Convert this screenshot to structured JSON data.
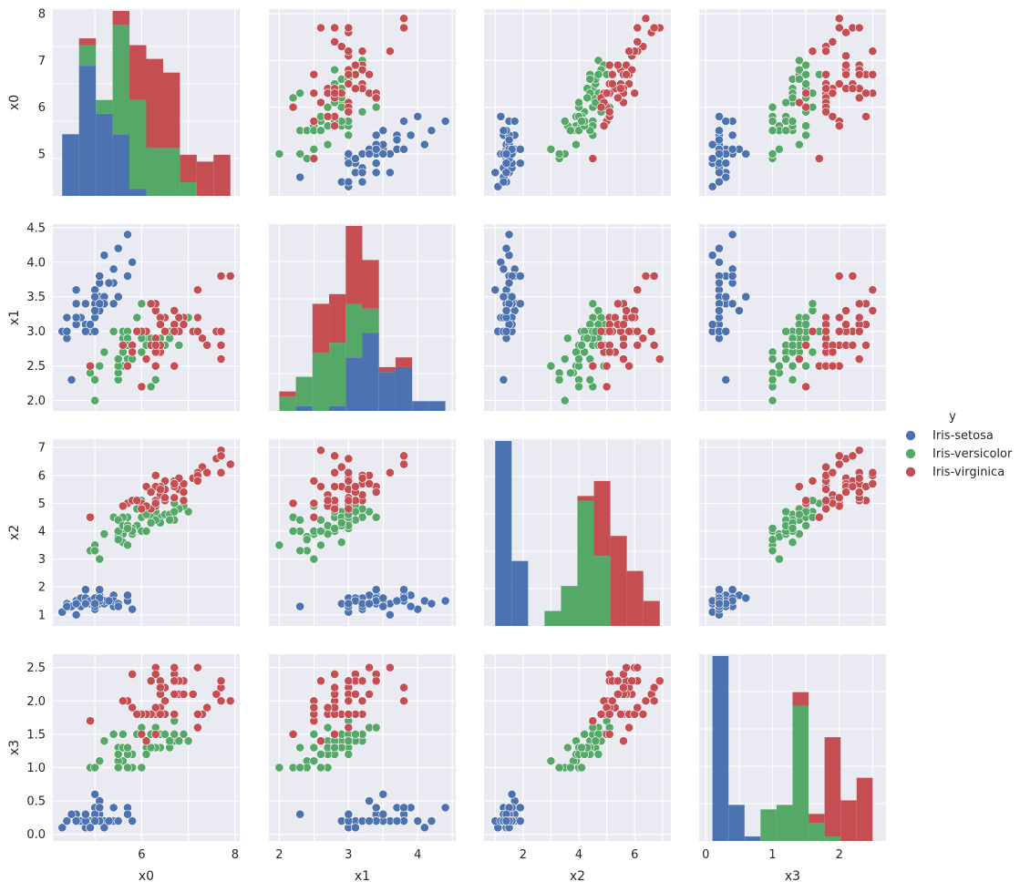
{
  "chart_data": {
    "type": "scatter",
    "subtype": "pairplot",
    "variables": [
      "x0",
      "x1",
      "x2",
      "x3"
    ],
    "hue_title": "y",
    "diag_kind": "hist",
    "classes": [
      {
        "name": "Iris-setosa",
        "color": "#4C72B0"
      },
      {
        "name": "Iris-versicolor",
        "color": "#55A868"
      },
      {
        "name": "Iris-virginica",
        "color": "#C44E52"
      }
    ],
    "axes": {
      "x0": {
        "range": [
          4.1,
          8.1
        ],
        "ticks": [
          5,
          6,
          7,
          8
        ],
        "bottom_ticks": [
          6,
          8
        ]
      },
      "x1": {
        "range": [
          1.85,
          4.55
        ],
        "ticks": [
          2.0,
          2.5,
          3.0,
          3.5,
          4.0,
          4.5
        ],
        "bottom_ticks": [
          2,
          3,
          4
        ]
      },
      "x2": {
        "range": [
          0.6,
          7.3
        ],
        "ticks": [
          1,
          2,
          3,
          4,
          5,
          6,
          7
        ],
        "bottom_ticks": [
          2,
          4,
          6
        ]
      },
      "x3": {
        "range": [
          -0.1,
          2.7
        ],
        "ticks": [
          0.0,
          0.5,
          1.0,
          1.5,
          2.0,
          2.5
        ],
        "bottom_ticks": [
          0,
          1,
          2
        ]
      }
    },
    "tick_text": {
      "x0": [
        "5",
        "6",
        "7",
        "8"
      ],
      "x1": [
        "2.0",
        "2.5",
        "3.0",
        "3.5",
        "4.0",
        "4.5"
      ],
      "x2": [
        "1",
        "2",
        "3",
        "4",
        "5",
        "6",
        "7"
      ],
      "x3": [
        "0.0",
        "0.5",
        "1.0",
        "1.5",
        "2.0",
        "2.5"
      ],
      "x0_bottom": [
        "6",
        "8"
      ],
      "x1_bottom": [
        "2",
        "3",
        "4"
      ],
      "x2_bottom": [
        "2",
        "4",
        "6"
      ],
      "x3_bottom": [
        "0",
        "1",
        "2"
      ]
    },
    "data": {
      "Iris-setosa": [
        [
          5.1,
          3.5,
          1.4,
          0.2
        ],
        [
          4.9,
          3.0,
          1.4,
          0.2
        ],
        [
          4.7,
          3.2,
          1.3,
          0.2
        ],
        [
          4.6,
          3.1,
          1.5,
          0.2
        ],
        [
          5.0,
          3.6,
          1.4,
          0.2
        ],
        [
          5.4,
          3.9,
          1.7,
          0.4
        ],
        [
          4.6,
          3.4,
          1.4,
          0.3
        ],
        [
          5.0,
          3.4,
          1.5,
          0.2
        ],
        [
          4.4,
          2.9,
          1.4,
          0.2
        ],
        [
          4.9,
          3.1,
          1.5,
          0.1
        ],
        [
          5.4,
          3.7,
          1.5,
          0.2
        ],
        [
          4.8,
          3.4,
          1.6,
          0.2
        ],
        [
          4.8,
          3.0,
          1.4,
          0.1
        ],
        [
          4.3,
          3.0,
          1.1,
          0.1
        ],
        [
          5.8,
          4.0,
          1.2,
          0.2
        ],
        [
          5.7,
          4.4,
          1.5,
          0.4
        ],
        [
          5.4,
          3.9,
          1.3,
          0.4
        ],
        [
          5.1,
          3.5,
          1.4,
          0.3
        ],
        [
          5.7,
          3.8,
          1.7,
          0.3
        ],
        [
          5.1,
          3.8,
          1.5,
          0.3
        ],
        [
          5.4,
          3.4,
          1.7,
          0.2
        ],
        [
          5.1,
          3.7,
          1.5,
          0.4
        ],
        [
          4.6,
          3.6,
          1.0,
          0.2
        ],
        [
          5.1,
          3.3,
          1.7,
          0.5
        ],
        [
          4.8,
          3.4,
          1.9,
          0.2
        ],
        [
          5.0,
          3.0,
          1.6,
          0.2
        ],
        [
          5.0,
          3.4,
          1.6,
          0.4
        ],
        [
          5.2,
          3.5,
          1.5,
          0.2
        ],
        [
          5.2,
          3.4,
          1.4,
          0.2
        ],
        [
          4.7,
          3.2,
          1.6,
          0.2
        ],
        [
          4.8,
          3.1,
          1.6,
          0.2
        ],
        [
          5.4,
          3.4,
          1.5,
          0.4
        ],
        [
          5.2,
          4.1,
          1.5,
          0.1
        ],
        [
          5.5,
          4.2,
          1.4,
          0.2
        ],
        [
          4.9,
          3.1,
          1.5,
          0.1
        ],
        [
          5.0,
          3.2,
          1.2,
          0.2
        ],
        [
          5.5,
          3.5,
          1.3,
          0.2
        ],
        [
          4.9,
          3.1,
          1.5,
          0.1
        ],
        [
          4.4,
          3.0,
          1.3,
          0.2
        ],
        [
          5.1,
          3.4,
          1.5,
          0.2
        ],
        [
          5.0,
          3.5,
          1.3,
          0.3
        ],
        [
          4.5,
          2.3,
          1.3,
          0.3
        ],
        [
          4.4,
          3.2,
          1.3,
          0.2
        ],
        [
          5.0,
          3.5,
          1.6,
          0.6
        ],
        [
          5.1,
          3.8,
          1.9,
          0.4
        ],
        [
          4.8,
          3.0,
          1.4,
          0.3
        ],
        [
          5.1,
          3.8,
          1.6,
          0.2
        ],
        [
          4.6,
          3.2,
          1.4,
          0.2
        ],
        [
          5.3,
          3.7,
          1.5,
          0.2
        ],
        [
          5.0,
          3.3,
          1.4,
          0.2
        ]
      ],
      "Iris-versicolor": [
        [
          7.0,
          3.2,
          4.7,
          1.4
        ],
        [
          6.4,
          3.2,
          4.5,
          1.5
        ],
        [
          6.9,
          3.1,
          4.9,
          1.5
        ],
        [
          5.5,
          2.3,
          4.0,
          1.3
        ],
        [
          6.5,
          2.8,
          4.6,
          1.5
        ],
        [
          5.7,
          2.8,
          4.5,
          1.3
        ],
        [
          6.3,
          3.3,
          4.7,
          1.6
        ],
        [
          4.9,
          2.4,
          3.3,
          1.0
        ],
        [
          6.6,
          2.9,
          4.6,
          1.3
        ],
        [
          5.2,
          2.7,
          3.9,
          1.4
        ],
        [
          5.0,
          2.0,
          3.5,
          1.0
        ],
        [
          5.9,
          3.0,
          4.2,
          1.5
        ],
        [
          6.0,
          2.2,
          4.0,
          1.0
        ],
        [
          6.1,
          2.9,
          4.7,
          1.4
        ],
        [
          5.6,
          2.9,
          3.6,
          1.3
        ],
        [
          6.7,
          3.1,
          4.4,
          1.4
        ],
        [
          5.6,
          3.0,
          4.5,
          1.5
        ],
        [
          5.8,
          2.7,
          4.1,
          1.0
        ],
        [
          6.2,
          2.2,
          4.5,
          1.5
        ],
        [
          5.6,
          2.5,
          3.9,
          1.1
        ],
        [
          5.9,
          3.2,
          4.8,
          1.8
        ],
        [
          6.1,
          2.8,
          4.0,
          1.3
        ],
        [
          6.3,
          2.5,
          4.9,
          1.5
        ],
        [
          6.1,
          2.8,
          4.7,
          1.2
        ],
        [
          6.4,
          2.9,
          4.3,
          1.3
        ],
        [
          6.6,
          3.0,
          4.4,
          1.4
        ],
        [
          6.8,
          2.8,
          4.8,
          1.4
        ],
        [
          6.7,
          3.0,
          5.0,
          1.7
        ],
        [
          6.0,
          2.9,
          4.5,
          1.5
        ],
        [
          5.7,
          2.6,
          3.5,
          1.0
        ],
        [
          5.5,
          2.4,
          3.8,
          1.1
        ],
        [
          5.5,
          2.4,
          3.7,
          1.0
        ],
        [
          5.8,
          2.7,
          3.9,
          1.2
        ],
        [
          6.0,
          2.7,
          5.1,
          1.6
        ],
        [
          5.4,
          3.0,
          4.5,
          1.5
        ],
        [
          6.0,
          3.4,
          4.5,
          1.6
        ],
        [
          6.7,
          3.1,
          4.7,
          1.5
        ],
        [
          6.3,
          2.3,
          4.4,
          1.3
        ],
        [
          5.6,
          3.0,
          4.1,
          1.3
        ],
        [
          5.5,
          2.5,
          4.0,
          1.3
        ],
        [
          5.5,
          2.6,
          4.4,
          1.2
        ],
        [
          6.1,
          3.0,
          4.6,
          1.4
        ],
        [
          5.8,
          2.6,
          4.0,
          1.2
        ],
        [
          5.0,
          2.3,
          3.3,
          1.0
        ],
        [
          5.6,
          2.7,
          4.2,
          1.3
        ],
        [
          5.7,
          3.0,
          4.2,
          1.2
        ],
        [
          5.7,
          2.9,
          4.2,
          1.3
        ],
        [
          6.2,
          2.9,
          4.3,
          1.3
        ],
        [
          5.1,
          2.5,
          3.0,
          1.1
        ],
        [
          5.7,
          2.8,
          4.1,
          1.3
        ]
      ],
      "Iris-virginica": [
        [
          6.3,
          3.3,
          6.0,
          2.5
        ],
        [
          5.8,
          2.7,
          5.1,
          1.9
        ],
        [
          7.1,
          3.0,
          5.9,
          2.1
        ],
        [
          6.3,
          2.9,
          5.6,
          1.8
        ],
        [
          6.5,
          3.0,
          5.8,
          2.2
        ],
        [
          7.6,
          3.0,
          6.6,
          2.1
        ],
        [
          4.9,
          2.5,
          4.5,
          1.7
        ],
        [
          7.3,
          2.9,
          6.3,
          1.8
        ],
        [
          6.7,
          2.5,
          5.8,
          1.8
        ],
        [
          7.2,
          3.6,
          6.1,
          2.5
        ],
        [
          6.5,
          3.2,
          5.1,
          2.0
        ],
        [
          6.4,
          2.7,
          5.3,
          1.9
        ],
        [
          6.8,
          3.0,
          5.5,
          2.1
        ],
        [
          5.7,
          2.5,
          5.0,
          2.0
        ],
        [
          5.8,
          2.8,
          5.1,
          2.4
        ],
        [
          6.4,
          3.2,
          5.3,
          2.3
        ],
        [
          6.5,
          3.0,
          5.5,
          1.8
        ],
        [
          7.7,
          3.8,
          6.7,
          2.2
        ],
        [
          7.7,
          2.6,
          6.9,
          2.3
        ],
        [
          6.0,
          2.2,
          5.0,
          1.5
        ],
        [
          6.9,
          3.2,
          5.7,
          2.3
        ],
        [
          5.6,
          2.8,
          4.9,
          2.0
        ],
        [
          7.7,
          2.8,
          6.7,
          2.0
        ],
        [
          6.3,
          2.7,
          4.9,
          1.8
        ],
        [
          6.7,
          3.3,
          5.7,
          2.1
        ],
        [
          7.2,
          3.2,
          6.0,
          1.8
        ],
        [
          6.2,
          2.8,
          4.8,
          1.8
        ],
        [
          6.1,
          3.0,
          4.9,
          1.8
        ],
        [
          6.4,
          2.8,
          5.6,
          2.1
        ],
        [
          7.2,
          3.0,
          5.8,
          1.6
        ],
        [
          7.4,
          2.8,
          6.1,
          1.9
        ],
        [
          7.9,
          3.8,
          6.4,
          2.0
        ],
        [
          6.4,
          2.8,
          5.6,
          2.2
        ],
        [
          6.3,
          2.8,
          5.1,
          1.5
        ],
        [
          6.1,
          2.6,
          5.6,
          1.4
        ],
        [
          7.7,
          3.0,
          6.1,
          2.3
        ],
        [
          6.3,
          3.4,
          5.6,
          2.4
        ],
        [
          6.4,
          3.1,
          5.5,
          1.8
        ],
        [
          6.0,
          3.0,
          4.8,
          1.8
        ],
        [
          6.9,
          3.1,
          5.4,
          2.1
        ],
        [
          6.7,
          3.1,
          5.6,
          2.4
        ],
        [
          6.9,
          3.1,
          5.1,
          2.3
        ],
        [
          5.8,
          2.7,
          5.1,
          1.9
        ],
        [
          6.8,
          3.2,
          5.9,
          2.3
        ],
        [
          6.7,
          3.3,
          5.7,
          2.5
        ],
        [
          6.7,
          3.0,
          5.2,
          2.3
        ],
        [
          6.3,
          2.5,
          5.0,
          1.9
        ],
        [
          6.5,
          3.0,
          5.2,
          2.0
        ],
        [
          6.2,
          3.4,
          5.4,
          2.3
        ],
        [
          5.9,
          3.0,
          5.1,
          1.8
        ]
      ]
    }
  }
}
